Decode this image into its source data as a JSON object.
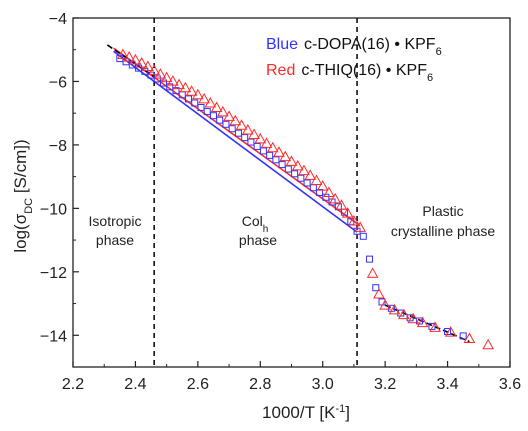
{
  "chart_data": {
    "type": "scatter",
    "xlabel": "1000/T [K",
    "xlabel_sup": "-1",
    "xlabel_end": "]",
    "ylabel_pre": "log(σ",
    "ylabel_sub": "DC",
    "ylabel_post": " [S/cm])",
    "xlim": [
      2.2,
      3.6
    ],
    "ylim": [
      -15,
      -4
    ],
    "xticks": [
      2.2,
      2.4,
      2.6,
      2.8,
      3.0,
      3.2,
      3.4,
      3.6
    ],
    "xtick_labels": [
      "2.2",
      "2.4",
      "2.6",
      "2.8",
      "3.0",
      "3.2",
      "3.4",
      "3.6"
    ],
    "yticks": [
      -14,
      -12,
      -10,
      -8,
      -6,
      -4
    ],
    "ytick_labels": [
      "−14",
      "−12",
      "−10",
      "−8",
      "−6",
      "−4"
    ],
    "grid": false,
    "legend_position": "top-right",
    "vertical_lines": [
      2.46,
      3.11
    ],
    "regions": [
      {
        "lines": [
          "Isotropic",
          "phase"
        ]
      },
      {
        "lines": [
          "Col",
          "phase"
        ],
        "subscript": "h"
      },
      {
        "lines": [
          "Plastic",
          "crystalline phase"
        ]
      }
    ],
    "series": [
      {
        "name": "c-DOPA(16) • KPF",
        "name_sub": "6",
        "legend_prefix": "Blue",
        "color": "#3333ff",
        "marker": "square",
        "x": [
          2.35,
          2.37,
          2.39,
          2.41,
          2.43,
          2.45,
          2.47,
          2.49,
          2.51,
          2.53,
          2.55,
          2.57,
          2.59,
          2.61,
          2.63,
          2.65,
          2.67,
          2.69,
          2.71,
          2.73,
          2.75,
          2.77,
          2.79,
          2.81,
          2.83,
          2.85,
          2.87,
          2.89,
          2.91,
          2.93,
          2.95,
          2.97,
          2.99,
          3.01,
          3.03,
          3.05,
          3.07,
          3.09,
          3.11,
          3.13,
          3.15,
          3.17,
          3.19,
          3.22,
          3.25,
          3.28,
          3.31,
          3.35,
          3.4,
          3.45
        ],
        "y": [
          -5.28,
          -5.38,
          -5.48,
          -5.58,
          -5.68,
          -5.8,
          -5.92,
          -6.05,
          -6.17,
          -6.29,
          -6.42,
          -6.55,
          -6.68,
          -6.82,
          -6.95,
          -7.08,
          -7.22,
          -7.35,
          -7.49,
          -7.63,
          -7.77,
          -7.91,
          -8.05,
          -8.19,
          -8.33,
          -8.47,
          -8.62,
          -8.76,
          -8.91,
          -9.05,
          -9.2,
          -9.35,
          -9.5,
          -9.65,
          -9.8,
          -9.95,
          -10.12,
          -10.42,
          -10.72,
          -10.88,
          -11.6,
          -12.5,
          -12.95,
          -13.15,
          -13.3,
          -13.45,
          -13.55,
          -13.72,
          -13.88,
          -14.02
        ]
      },
      {
        "name": "c-THIQ(16) • KPF",
        "name_sub": "6",
        "legend_prefix": "Red",
        "color": "#ff2a2a",
        "marker": "triangle",
        "x": [
          2.36,
          2.38,
          2.4,
          2.42,
          2.44,
          2.46,
          2.48,
          2.5,
          2.52,
          2.54,
          2.56,
          2.58,
          2.6,
          2.62,
          2.64,
          2.66,
          2.68,
          2.7,
          2.72,
          2.74,
          2.76,
          2.78,
          2.8,
          2.82,
          2.84,
          2.86,
          2.88,
          2.9,
          2.92,
          2.94,
          2.96,
          2.98,
          3.0,
          3.02,
          3.04,
          3.06,
          3.08,
          3.1,
          3.12,
          3.16,
          3.18,
          3.2,
          3.23,
          3.26,
          3.29,
          3.32,
          3.36,
          3.41,
          3.47,
          3.53
        ],
        "y": [
          -5.15,
          -5.23,
          -5.32,
          -5.42,
          -5.53,
          -5.65,
          -5.77,
          -5.88,
          -5.99,
          -6.1,
          -6.2,
          -6.31,
          -6.42,
          -6.55,
          -6.68,
          -6.82,
          -6.96,
          -7.1,
          -7.24,
          -7.38,
          -7.53,
          -7.67,
          -7.81,
          -7.95,
          -8.09,
          -8.23,
          -8.37,
          -8.52,
          -8.66,
          -8.81,
          -8.96,
          -9.12,
          -9.3,
          -9.5,
          -9.7,
          -9.9,
          -10.15,
          -10.4,
          -10.6,
          -12.05,
          -12.7,
          -13.05,
          -13.2,
          -13.35,
          -13.48,
          -13.6,
          -13.75,
          -13.9,
          -14.1,
          -14.3
        ]
      }
    ],
    "fit_lines": [
      {
        "color": "#3333ff",
        "x": [
          2.33,
          3.11
        ],
        "y": [
          -5.05,
          -10.75
        ]
      },
      {
        "color": "#ff2a2a",
        "x": [
          2.33,
          3.12
        ],
        "y": [
          -4.95,
          -10.55
        ]
      },
      {
        "color": "#000000",
        "x": [
          2.31,
          2.46
        ],
        "y": [
          -4.85,
          -5.85
        ]
      },
      {
        "color": "#000000",
        "x": [
          3.2,
          3.47
        ],
        "y": [
          -13.05,
          -14.2
        ]
      }
    ]
  }
}
